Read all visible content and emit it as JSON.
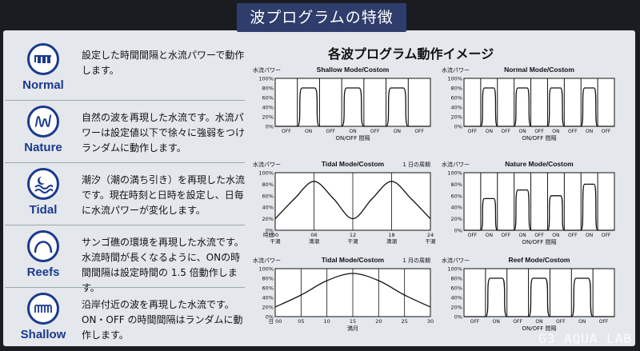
{
  "header": {
    "title": "波プログラムの特徴"
  },
  "section_title": "各波プログラム動作イメージ",
  "modes": [
    {
      "label": "Normal",
      "icon": "square-wave-icon",
      "desc": "設定した時間間隔と水流パワーで動作します。"
    },
    {
      "label": "Nature",
      "icon": "random-wave-icon",
      "desc": "自然の波を再現した水流です。水流パワーは設定値以下で徐々に強弱をつけランダムに動作します。"
    },
    {
      "label": "Tidal",
      "icon": "moon-tide-icon",
      "desc": "潮汐（潮の満ち引き）を再現した水流です。現在時刻と日時を設定し、日毎に水流パワーが変化します。"
    },
    {
      "label": "Reefs",
      "icon": "reef-arch-icon",
      "desc": "サンゴ礁の環境を再現した水流です。水流時間が長くなるように、ONの時間間隔は設定時間の 1.5 倍動作します。"
    },
    {
      "label": "Shallow",
      "icon": "shallow-wave-icon",
      "desc": "沿岸付近の波を再現した水流です。ON・OFF の時間間隔はランダムに動作します。"
    }
  ],
  "watermark": "G3 AQUA LAB",
  "chart_data": [
    {
      "type": "line",
      "title": "Shallow Mode/Costom",
      "ylabel": "水流パワー",
      "xlabel": "ON/OFF 間隔",
      "yticks": [
        "100%",
        "80%",
        "60%",
        "40%",
        "20%",
        "0%"
      ],
      "xticks": [
        "OFF",
        "ON",
        "OFF",
        "ON",
        "OFF",
        "ON",
        "OFF"
      ],
      "ylim": [
        0,
        100
      ],
      "segments": [
        {
          "state": "OFF",
          "value": 0
        },
        {
          "state": "ON",
          "value": 80
        },
        {
          "state": "OFF",
          "value": 0
        },
        {
          "state": "ON",
          "value": 80
        },
        {
          "state": "OFF",
          "value": 0
        },
        {
          "state": "ON",
          "value": 80
        },
        {
          "state": "OFF",
          "value": 0
        }
      ]
    },
    {
      "type": "line",
      "title": "Normal Mode/Costom",
      "ylabel": "水流パワー",
      "xlabel": "ON/OFF 間隔",
      "yticks": [
        "100%",
        "80%",
        "60%",
        "40%",
        "20%",
        "0%"
      ],
      "xticks": [
        "OFF",
        "ON",
        "OFF",
        "ON",
        "OFF",
        "ON",
        "OFF",
        "ON",
        "OFF"
      ],
      "ylim": [
        0,
        100
      ],
      "segments": [
        {
          "state": "OFF",
          "value": 0
        },
        {
          "state": "ON",
          "value": 80
        },
        {
          "state": "OFF",
          "value": 0
        },
        {
          "state": "ON",
          "value": 80
        },
        {
          "state": "OFF",
          "value": 0
        },
        {
          "state": "ON",
          "value": 80
        },
        {
          "state": "OFF",
          "value": 0
        },
        {
          "state": "ON",
          "value": 80
        },
        {
          "state": "OFF",
          "value": 0
        }
      ]
    },
    {
      "type": "line",
      "title": "Tidal Mode/Costom",
      "note": "1 日の周期",
      "ylabel": "水流パワー",
      "xlabel_prefix": "時間",
      "yticks": [
        "100%",
        "80%",
        "60%",
        "40%",
        "20%",
        "0%"
      ],
      "ylim": [
        0,
        100
      ],
      "xlim": [
        0,
        24
      ],
      "x": [
        0,
        3,
        6,
        9,
        12,
        15,
        18,
        21,
        24
      ],
      "y": [
        20,
        55,
        85,
        55,
        20,
        55,
        85,
        55,
        20
      ],
      "xticks": [
        {
          "value": 0,
          "label": "00",
          "sub": "干潮"
        },
        {
          "value": 6,
          "label": "06",
          "sub": "満潮"
        },
        {
          "value": 12,
          "label": "12",
          "sub": "干潮"
        },
        {
          "value": 18,
          "label": "18",
          "sub": "満潮"
        },
        {
          "value": 24,
          "label": "24",
          "sub": "干潮"
        }
      ]
    },
    {
      "type": "line",
      "title": "Nature Mode/Costom",
      "ylabel": "水流パワー",
      "xlabel": "ON/OFF 間隔",
      "yticks": [
        "100%",
        "80%",
        "60%",
        "40%",
        "20%",
        "0%"
      ],
      "xticks": [
        "OFF",
        "ON",
        "OFF",
        "ON",
        "OFF",
        "ON",
        "OFF",
        "ON",
        "OFF"
      ],
      "ylim": [
        0,
        100
      ],
      "segments": [
        {
          "state": "OFF",
          "value": 0
        },
        {
          "state": "ON",
          "value": 55
        },
        {
          "state": "OFF",
          "value": 0
        },
        {
          "state": "ON",
          "value": 70
        },
        {
          "state": "OFF",
          "value": 0
        },
        {
          "state": "ON",
          "value": 60
        },
        {
          "state": "OFF",
          "value": 0
        },
        {
          "state": "ON",
          "value": 80
        },
        {
          "state": "OFF",
          "value": 0
        }
      ]
    },
    {
      "type": "line",
      "title": "Tidal Mode/Costom",
      "note": "1 月の周期",
      "ylabel": "水流パワー",
      "xlabel": "満月",
      "yticks": [
        "100%",
        "80%",
        "60%",
        "40%",
        "20%",
        "0%"
      ],
      "ylim": [
        0,
        100
      ],
      "xlim": [
        0,
        30
      ],
      "x": [
        0,
        5,
        10,
        15,
        20,
        25,
        30
      ],
      "y": [
        20,
        45,
        75,
        90,
        75,
        45,
        20
      ],
      "xticks": [
        {
          "value": 0,
          "label": "日 00"
        },
        {
          "value": 5,
          "label": "05"
        },
        {
          "value": 10,
          "label": "10"
        },
        {
          "value": 15,
          "label": "15"
        },
        {
          "value": 20,
          "label": "20"
        },
        {
          "value": 25,
          "label": "25"
        },
        {
          "value": 30,
          "label": "30"
        }
      ]
    },
    {
      "type": "line",
      "title": "Reef Mode/Costom",
      "ylabel": "水流パワー",
      "xlabel": "ON/OFF 間隔",
      "yticks": [
        "100%",
        "80%",
        "60%",
        "40%",
        "20%",
        "0%"
      ],
      "xticks": [
        "OFF",
        "ON",
        "OFF",
        "ON",
        "OFF",
        "ON",
        "OFF"
      ],
      "ylim": [
        0,
        100
      ],
      "segments": [
        {
          "state": "OFF",
          "value": 0
        },
        {
          "state": "ON",
          "value": 80
        },
        {
          "state": "OFF",
          "value": 0
        },
        {
          "state": "ON",
          "value": 80
        },
        {
          "state": "OFF",
          "value": 0
        },
        {
          "state": "ON",
          "value": 80
        },
        {
          "state": "OFF",
          "value": 0
        }
      ]
    }
  ]
}
